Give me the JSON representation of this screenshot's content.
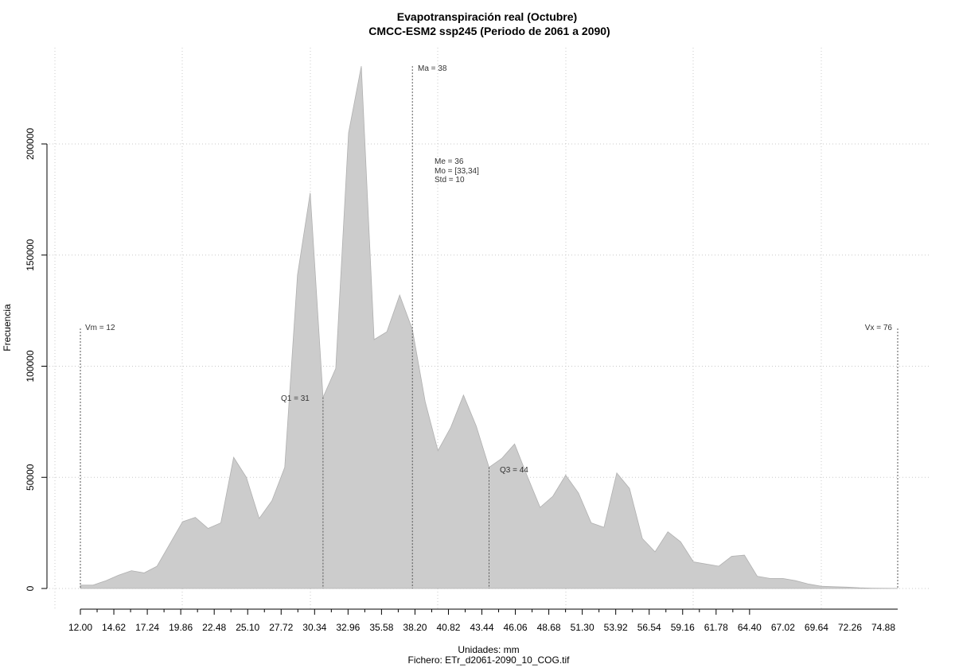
{
  "chart_data": {
    "type": "area",
    "title": "Evapotranspiración real (Octubre)",
    "subtitle": "CMCC-ESM2 ssp245 (Periodo de 2061 a 2090)",
    "xlabel": "Unidades: mm",
    "file_label": "Fichero: ETr_d2061-2090_10_COG.tif",
    "ylabel": "Frecuencia",
    "xlim": [
      12,
      76
    ],
    "ylim": [
      0,
      235000
    ],
    "grid": true,
    "x_tick_labels": [
      "12.00",
      "14.62",
      "17.24",
      "19.86",
      "22.48",
      "25.10",
      "27.72",
      "30.34",
      "32.96",
      "35.58",
      "38.20",
      "40.82",
      "43.44",
      "46.06",
      "48.68",
      "51.30",
      "53.92",
      "56.54",
      "59.16",
      "61.78",
      "64.40",
      "67.02",
      "69.64",
      "72.26",
      "74.88"
    ],
    "y_ticks": [
      0,
      50000,
      100000,
      150000,
      200000
    ],
    "y_tick_labels": [
      "0",
      "50000",
      "100000",
      "150000",
      "200000"
    ],
    "x": [
      12,
      13,
      14,
      15,
      16,
      17,
      18,
      19,
      20,
      21,
      22,
      23,
      24,
      25,
      26,
      27,
      28,
      29,
      30,
      31,
      32,
      33,
      34,
      35,
      36,
      37,
      38,
      39,
      40,
      41,
      42,
      43,
      44,
      45,
      46,
      47,
      48,
      49,
      50,
      51,
      52,
      53,
      54,
      55,
      56,
      57,
      58,
      59,
      60,
      61,
      62,
      63,
      64,
      65,
      66,
      67,
      68,
      69,
      70,
      71,
      72,
      73,
      74,
      75,
      76
    ],
    "values": [
      1500,
      1500,
      3500,
      6000,
      8000,
      7000,
      10000,
      20000,
      30000,
      32000,
      27000,
      29500,
      59000,
      50000,
      31500,
      39500,
      54500,
      141000,
      178000,
      86000,
      99000,
      205000,
      235000,
      112000,
      115500,
      132000,
      116500,
      84000,
      62000,
      72500,
      87000,
      73000,
      54500,
      58500,
      65000,
      50500,
      36500,
      41500,
      51000,
      43000,
      29500,
      27500,
      52000,
      45000,
      22500,
      16500,
      25500,
      21000,
      12000,
      11000,
      10000,
      14500,
      15000,
      5500,
      4500,
      4500,
      3500,
      2000,
      1000,
      800,
      600,
      300,
      150,
      80,
      40
    ],
    "fill_color": "#cccccc",
    "stroke_color": "#b0b0b0",
    "stats": {
      "vm": {
        "label": "Vm = 12",
        "x": 12
      },
      "q1": {
        "label": "Q1 = 31",
        "x": 31
      },
      "ma": {
        "label": "Ma = 38",
        "x": 38
      },
      "q3": {
        "label": "Q3 = 44",
        "x": 44
      },
      "vx": {
        "label": "Vx = 76",
        "x": 76
      },
      "me": "Me = 36",
      "mo": "Mo = [33,34]",
      "std": "Std = 10"
    }
  }
}
